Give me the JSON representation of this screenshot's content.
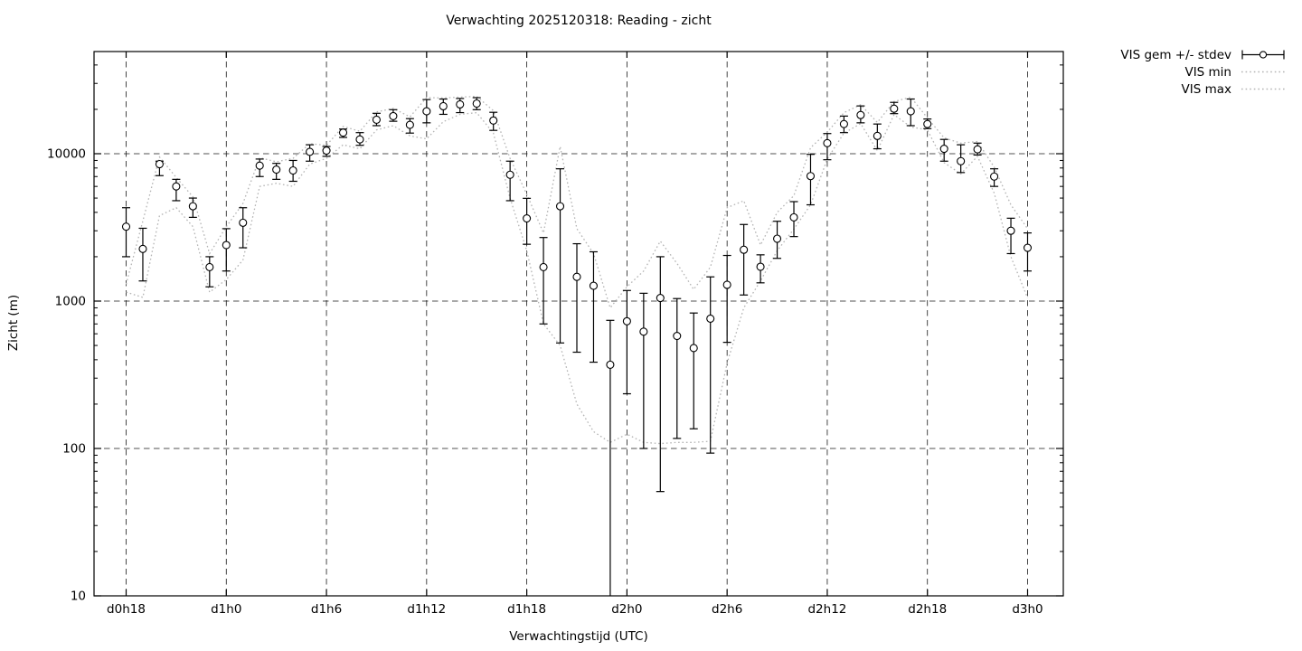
{
  "chart_data": {
    "type": "line",
    "title": "Verwachting 2025120318: Reading - zicht",
    "xlabel": "Verwachtingstijd (UTC)",
    "ylabel": "Zicht (m)",
    "y_scale": "log",
    "ylim": [
      10,
      40000
    ],
    "y_ticks": [
      10,
      100,
      1000,
      10000
    ],
    "y_tick_labels": [
      "10",
      "100",
      "1000",
      "10000"
    ],
    "x_tick_labels": [
      "d0h18",
      "d1h0",
      "d1h6",
      "d1h12",
      "d1h18",
      "d2h0",
      "d2h6",
      "d2h12",
      "d2h18",
      "d3h0"
    ],
    "x_tick_hours": [
      0,
      6,
      12,
      18,
      24,
      30,
      36,
      42,
      48,
      54
    ],
    "x_hours_span": 54,
    "grid": true,
    "legend_position": "outside-top-right",
    "legend": [
      "VIS gem +/- stdev",
      "VIS min",
      "VIS max"
    ],
    "series": [
      {
        "name": "VIS gem",
        "values": [
          3200,
          2260,
          8500,
          6000,
          4400,
          1700,
          2400,
          3400,
          8300,
          7800,
          7700,
          10300,
          10500,
          13900,
          12500,
          17000,
          18000,
          15700,
          19400,
          21000,
          21600,
          21900,
          16800,
          7200,
          3640,
          1700,
          4400,
          1460,
          1270,
          370,
          730,
          620,
          1050,
          580,
          480,
          760,
          1290,
          2230,
          1710,
          2650,
          3700,
          7050,
          11800,
          15900,
          18300,
          13200,
          20200,
          19400,
          15900,
          10800,
          8900,
          10700,
          7000,
          3000,
          2300
        ]
      },
      {
        "name": "VIS gem - stdev",
        "values": [
          2000,
          1370,
          7100,
          4800,
          3700,
          1250,
          1600,
          2300,
          7000,
          6700,
          6500,
          8900,
          9600,
          12900,
          11400,
          15500,
          16600,
          13800,
          16200,
          18500,
          19000,
          19900,
          14400,
          4800,
          2430,
          700,
          520,
          450,
          385,
          10,
          235,
          100,
          51,
          117,
          136,
          93,
          525,
          1100,
          1330,
          1950,
          2740,
          4500,
          9100,
          13900,
          16200,
          10800,
          18700,
          15500,
          14800,
          8900,
          7450,
          9800,
          6000,
          2100,
          1600
        ]
      },
      {
        "name": "VIS gem + stdev",
        "values": [
          4300,
          3120,
          8900,
          6700,
          5000,
          2000,
          3100,
          4300,
          9200,
          8600,
          9000,
          11500,
          11200,
          14700,
          13900,
          18800,
          19900,
          17300,
          23300,
          23500,
          23700,
          24000,
          19100,
          8900,
          4980,
          2700,
          7900,
          2450,
          2160,
          740,
          1180,
          1130,
          2000,
          1040,
          830,
          1460,
          2040,
          3310,
          2060,
          3480,
          4730,
          9900,
          13700,
          18000,
          21100,
          15900,
          22300,
          23500,
          17200,
          12500,
          11500,
          11800,
          7900,
          3650,
          2900
        ]
      },
      {
        "name": "VIS min",
        "values": [
          1150,
          1060,
          3800,
          4300,
          3200,
          1150,
          1400,
          1900,
          6000,
          6300,
          6000,
          8500,
          9300,
          11500,
          10800,
          14500,
          15500,
          13200,
          12600,
          16500,
          18500,
          19000,
          13800,
          5000,
          2200,
          700,
          500,
          200,
          130,
          110,
          125,
          110,
          108,
          110,
          110,
          112,
          380,
          900,
          1370,
          2200,
          3080,
          4500,
          9200,
          13800,
          16000,
          10500,
          18400,
          15200,
          14500,
          8700,
          7300,
          9600,
          5400,
          2000,
          1050
        ]
      },
      {
        "name": "VIS max",
        "values": [
          1300,
          3500,
          9500,
          6900,
          5100,
          2100,
          3200,
          4600,
          9400,
          8800,
          9300,
          11700,
          11400,
          15300,
          14200,
          19200,
          20300,
          17800,
          24000,
          23900,
          24200,
          24500,
          19600,
          9300,
          5300,
          2900,
          11200,
          3100,
          2100,
          900,
          1250,
          1600,
          2550,
          1800,
          1200,
          1700,
          4300,
          4800,
          2400,
          4000,
          5200,
          11000,
          14000,
          19000,
          21500,
          16300,
          22600,
          24200,
          17500,
          12800,
          11800,
          12100,
          8100,
          4500,
          3100
        ]
      }
    ],
    "colors": {
      "series": "#000000",
      "minmax": "#b4b4b4",
      "grid": "#1a1a1a",
      "background": "#ffffff"
    }
  }
}
